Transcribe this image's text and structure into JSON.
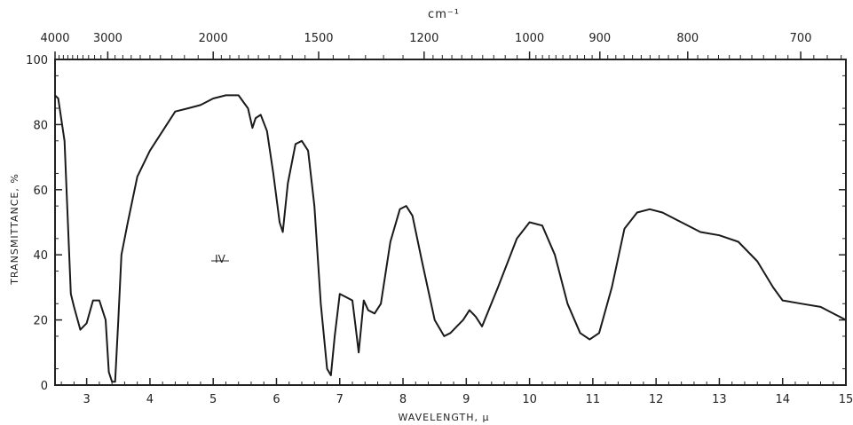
{
  "chart_data": {
    "type": "line",
    "title": "",
    "xlabel": "WAVELENGTH, μ",
    "ylabel": "TRANSMITTANCE, %",
    "x2label": "cm⁻¹",
    "annotation": "IV",
    "xlim": [
      2.5,
      15
    ],
    "ylim": [
      0,
      100
    ],
    "grid": false,
    "x_ticks": [
      3,
      4,
      5,
      6,
      7,
      8,
      9,
      10,
      11,
      12,
      13,
      14,
      15
    ],
    "x_tick_labels": [
      "3",
      "4",
      "5",
      "6",
      "7",
      "8",
      "9",
      "10",
      "11",
      "12",
      "13",
      "14",
      "15"
    ],
    "y_ticks": [
      0,
      20,
      40,
      60,
      80,
      100
    ],
    "y_tick_labels": [
      "0",
      "20",
      "40",
      "60",
      "80",
      "100"
    ],
    "x2_ticks": [
      4000,
      3000,
      2000,
      1500,
      1200,
      1000,
      900,
      800,
      700
    ],
    "x2_tick_labels": [
      "4000",
      "3000",
      "2000",
      "1500",
      "1200",
      "1000",
      "900",
      "800",
      "700"
    ],
    "series": [
      {
        "x": [
          2.5,
          2.55,
          2.65,
          2.75,
          2.8,
          2.9,
          3.0,
          3.1,
          3.2,
          3.3,
          3.35,
          3.4,
          3.45,
          3.5,
          3.55,
          3.65,
          3.8,
          4.0,
          4.2,
          4.4,
          4.6,
          4.8,
          5.0,
          5.2,
          5.4,
          5.55,
          5.62,
          5.67,
          5.75,
          5.85,
          5.95,
          6.05,
          6.1,
          6.18,
          6.3,
          6.4,
          6.5,
          6.6,
          6.7,
          6.8,
          6.86,
          6.92,
          7.0,
          7.1,
          7.2,
          7.25,
          7.3,
          7.38,
          7.45,
          7.55,
          7.65,
          7.8,
          7.95,
          8.05,
          8.15,
          8.3,
          8.5,
          8.65,
          8.75,
          8.85,
          8.95,
          9.05,
          9.15,
          9.25,
          9.5,
          9.8,
          10.0,
          10.2,
          10.4,
          10.6,
          10.8,
          10.95,
          11.1,
          11.3,
          11.5,
          11.7,
          11.9,
          12.1,
          12.4,
          12.7,
          13.0,
          13.3,
          13.6,
          13.85,
          14.0,
          14.3,
          14.6,
          14.8,
          15.0
        ],
        "y": [
          89,
          88,
          75,
          28,
          24,
          17,
          19,
          26,
          26,
          20,
          4,
          1,
          1,
          20,
          40,
          50,
          64,
          72,
          78,
          84,
          85,
          86,
          88,
          89,
          89,
          85,
          79,
          82,
          83,
          78,
          65,
          50,
          47,
          62,
          74,
          75,
          72,
          55,
          25,
          5,
          3,
          15,
          28,
          27,
          26,
          18,
          10,
          26,
          23,
          22,
          25,
          44,
          54,
          55,
          52,
          38,
          20,
          15,
          16,
          18,
          20,
          23,
          21,
          18,
          30,
          45,
          50,
          49,
          40,
          25,
          16,
          14,
          16,
          30,
          48,
          53,
          54,
          53,
          50,
          47,
          46,
          44,
          38,
          30,
          26,
          25,
          24,
          22,
          20
        ]
      }
    ]
  }
}
